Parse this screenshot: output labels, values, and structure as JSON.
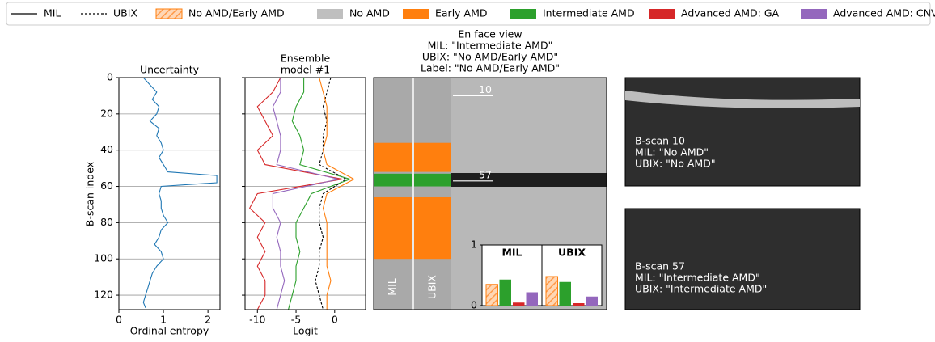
{
  "legend": [
    {
      "name": "MIL",
      "style": "solid"
    },
    {
      "name": "UBIX",
      "style": "dashed"
    },
    {
      "name": "No AMD/Early AMD",
      "color": "#ff7f0e",
      "hatch": true
    },
    {
      "name": "No AMD",
      "color": "#bfbfbf"
    },
    {
      "name": "Early AMD",
      "color": "#ff7f0e"
    },
    {
      "name": "Intermediate AMD",
      "color": "#2ca02c"
    },
    {
      "name": "Advanced AMD: GA",
      "color": "#d62728"
    },
    {
      "name": "Advanced AMD: CNV",
      "color": "#9467bd"
    }
  ],
  "chart_data": [
    {
      "type": "line",
      "title": "Uncertainty",
      "x_label": "Ordinal entropy",
      "y_label": "B-scan index",
      "y": [
        0,
        4,
        8,
        12,
        16,
        20,
        24,
        28,
        32,
        36,
        40,
        44,
        48,
        52,
        54,
        58,
        60,
        64,
        68,
        72,
        76,
        80,
        84,
        88,
        92,
        96,
        100,
        104,
        108,
        112,
        116,
        120,
        124,
        127
      ],
      "values": [
        0.55,
        0.7,
        0.85,
        0.75,
        0.9,
        0.85,
        0.7,
        0.9,
        0.85,
        0.95,
        1.0,
        0.9,
        1.0,
        1.1,
        2.2,
        2.2,
        0.95,
        0.9,
        0.95,
        0.95,
        1.0,
        1.1,
        0.95,
        0.9,
        0.8,
        0.95,
        1.0,
        0.85,
        0.75,
        0.7,
        0.65,
        0.6,
        0.55,
        0.6
      ],
      "color": "#1f77b4",
      "xlim": [
        0,
        2.27
      ],
      "xticks": [
        0,
        1,
        2
      ],
      "ylim": [
        128,
        0
      ],
      "yticks": [
        0,
        20,
        40,
        60,
        80,
        100,
        120
      ],
      "grid": true
    },
    {
      "type": "line",
      "title_lines": [
        "Ensemble",
        "model #1"
      ],
      "x_label": "Logit",
      "y": [
        0,
        8,
        16,
        24,
        32,
        40,
        48,
        56,
        64,
        72,
        80,
        88,
        96,
        104,
        112,
        120,
        128
      ],
      "series": [
        {
          "color": "#000000",
          "dashed": true,
          "values": [
            -0.5,
            -1,
            -1.5,
            -1,
            -1.5,
            -1.5,
            -2,
            1.5,
            -1.5,
            -2,
            -2,
            -1.5,
            -2,
            -2,
            -2.5,
            -2,
            -1.5
          ]
        },
        {
          "color": "#ff7f0e",
          "values": [
            -2,
            -1.5,
            -1,
            -1,
            -1,
            -1.5,
            -1,
            2.5,
            -1,
            -1.5,
            -1,
            -1,
            -1,
            -1,
            -0.5,
            -1,
            -1
          ]
        },
        {
          "color": "#2ca02c",
          "values": [
            -4,
            -4,
            -5,
            -5.5,
            -4.5,
            -4,
            -4.5,
            2,
            -3,
            -4,
            -5,
            -5,
            -4.5,
            -5,
            -5,
            -5.5,
            -6
          ]
        },
        {
          "color": "#d62728",
          "values": [
            -7,
            -8,
            -10,
            -9,
            -8,
            -10,
            -9,
            1,
            -10,
            -11,
            -9,
            -10,
            -9,
            -10,
            -9,
            -9,
            -10
          ]
        },
        {
          "color": "#9467bd",
          "values": [
            -7,
            -7,
            -8,
            -7.5,
            -7,
            -7,
            -7.5,
            0.5,
            -8,
            -8,
            -7,
            -7.5,
            -7,
            -7,
            -6.5,
            -7,
            -7.5
          ]
        }
      ],
      "xlim": [
        -11.6,
        4
      ],
      "xticks": [
        -10,
        -5,
        0
      ],
      "ylim": [
        128,
        0
      ],
      "yticks": [
        0,
        20,
        40,
        60,
        80,
        100,
        120
      ],
      "grid": true
    },
    {
      "type": "enface",
      "title_lines": [
        "En face view",
        "MIL: \"Intermediate AMD\"",
        "UBIX: \"No AMD/Early AMD\"",
        "Label: \"No AMD/Early AMD\""
      ],
      "columns": [
        "MIL",
        "UBIX"
      ],
      "bands": [
        [
          {
            "start": 36,
            "end": 52,
            "color": "#ff7f0e"
          },
          {
            "start": 53,
            "end": 60,
            "color": "#2ca02c"
          },
          {
            "start": 66,
            "end": 100,
            "color": "#ff7f0e"
          }
        ],
        [
          {
            "start": 36,
            "end": 52,
            "color": "#ff7f0e"
          },
          {
            "start": 53,
            "end": 60,
            "color": "#2ca02c"
          },
          {
            "start": 66,
            "end": 100,
            "color": "#ff7f0e"
          }
        ]
      ],
      "markers": [
        10,
        57
      ],
      "ylim": [
        128,
        0
      ]
    },
    {
      "type": "bar",
      "groups": [
        "MIL",
        "UBIX"
      ],
      "series": [
        {
          "color": "#ff7f0e",
          "hatch": true,
          "values": [
            0.35,
            0.48
          ]
        },
        {
          "color": "#2ca02c",
          "values": [
            0.43,
            0.39
          ]
        },
        {
          "color": "#d62728",
          "values": [
            0.05,
            0.04
          ]
        },
        {
          "color": "#9467bd",
          "values": [
            0.22,
            0.15
          ]
        }
      ],
      "ylim": [
        0,
        1
      ],
      "yticks": [
        0,
        1
      ]
    }
  ],
  "bscans": [
    {
      "lines": [
        "B-scan 10",
        "MIL: \"No AMD\"",
        "UBIX: \"No AMD\""
      ]
    },
    {
      "lines": [
        "B-scan 57",
        "MIL: \"Intermediate AMD\"",
        "UBIX: \"Intermediate AMD\""
      ]
    }
  ]
}
